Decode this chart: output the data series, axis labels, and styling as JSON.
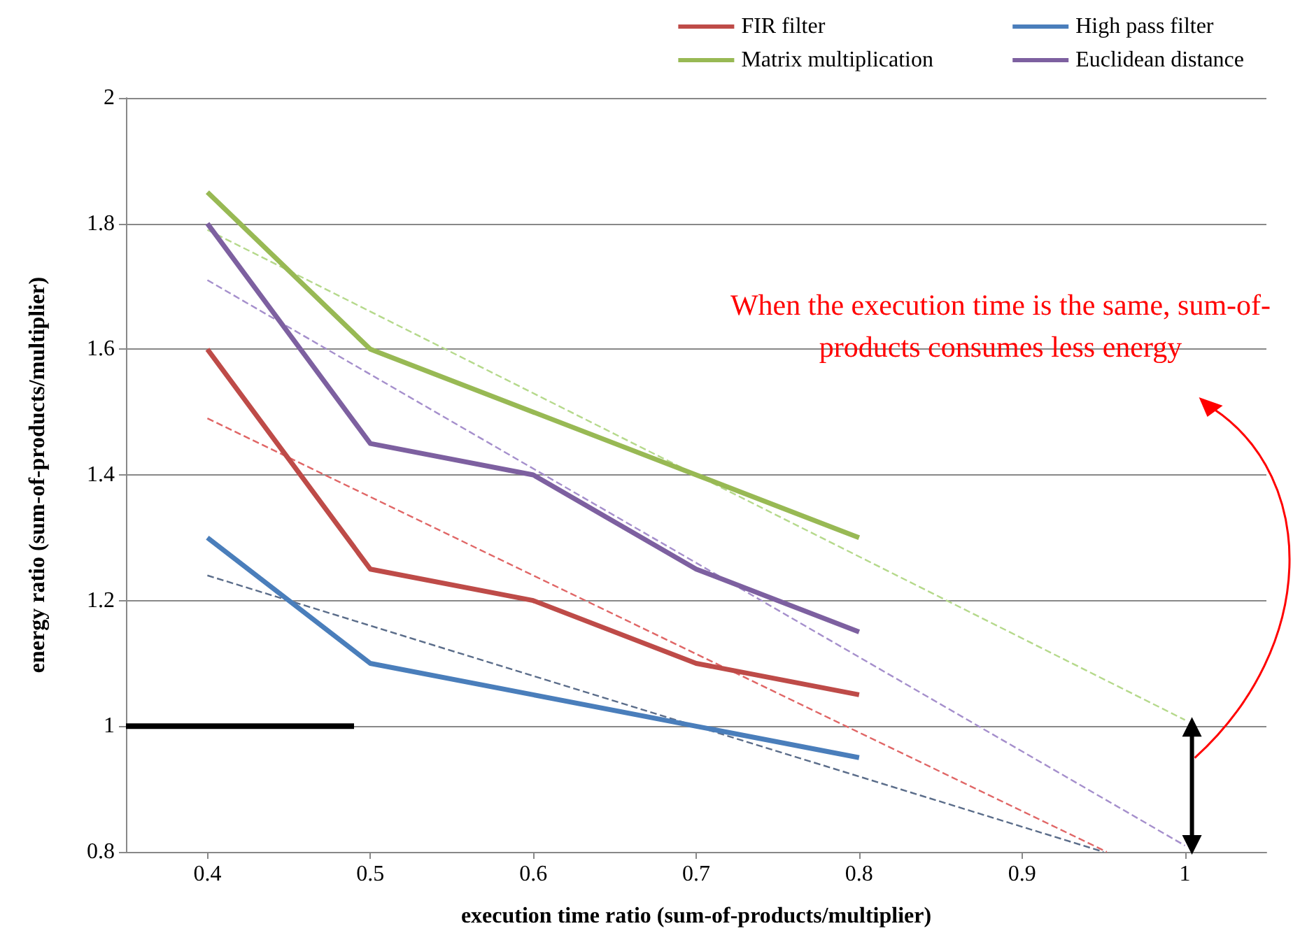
{
  "chart_data": {
    "type": "line",
    "xlabel": "execution time ratio (sum-of-products/multiplier)",
    "ylabel": "energy ratio (sum-of-products/multiplier)",
    "x": [
      0.4,
      0.5,
      0.6,
      0.7,
      0.8
    ],
    "series": [
      {
        "name": "FIR filter",
        "color": "#be4b48",
        "values": [
          1.6,
          1.25,
          1.2,
          1.1,
          1.05
        ]
      },
      {
        "name": "High pass filter",
        "color": "#4a7ebb",
        "values": [
          1.3,
          1.1,
          1.05,
          1.0,
          0.95
        ]
      },
      {
        "name": "Matrix multiplication",
        "color": "#98b954",
        "values": [
          1.85,
          1.6,
          1.5,
          1.4,
          1.3
        ]
      },
      {
        "name": "Euclidean distance",
        "color": "#7d60a0",
        "values": [
          1.8,
          1.45,
          1.4,
          1.25,
          1.15
        ]
      },
      {
        "color": "#e06666",
        "x": [
          0.4,
          0.952
        ],
        "values": [
          1.49,
          0.8
        ],
        "line_style": "dashed"
      },
      {
        "color": "#5b6d8a",
        "x": [
          0.4,
          0.95
        ],
        "values": [
          1.24,
          0.8
        ],
        "line_style": "dashed"
      },
      {
        "color": "#b5d98b",
        "x": [
          0.4,
          1.0
        ],
        "values": [
          1.79,
          1.01
        ],
        "line_style": "dashed"
      },
      {
        "color": "#a58fcc",
        "x": [
          0.4,
          1.0
        ],
        "values": [
          1.71,
          0.81
        ],
        "line_style": "dashed"
      },
      {
        "color": "#000000",
        "x": [
          0.35,
          0.49
        ],
        "values": [
          1.0,
          1.0
        ]
      }
    ],
    "xlim": [
      0.35,
      1.05
    ],
    "xticks": [
      0.4,
      0.5,
      0.6,
      0.7,
      0.8,
      0.9,
      1
    ],
    "ylim": [
      0.8,
      2
    ],
    "yticks": [
      0.8,
      1,
      1.2,
      1.4,
      1.6,
      1.8,
      2
    ],
    "grid": "y",
    "legend": "top right",
    "marker": "none",
    "line_style": "solid",
    "annotations": [
      "When the execution time is the same, sum-of-products consumes less energy"
    ]
  }
}
